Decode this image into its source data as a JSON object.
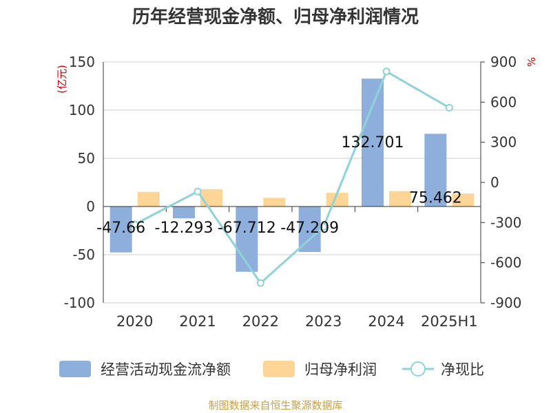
{
  "title": "历年经营现金净额、归母净利润情况",
  "footer": "制图数据来自恒生聚源数据库",
  "colors": {
    "ocf": "#8eaedb",
    "np": "#fdd596",
    "ratio": "#8fd3d8",
    "axis_text": "#333333",
    "unit_text": "#cc0000"
  },
  "chart_data": {
    "type": "bar",
    "categories": [
      "2020",
      "2021",
      "2022",
      "2023",
      "2024",
      "2025H1"
    ],
    "ylabel_left": "(亿元)",
    "ylabel_right": "%",
    "ylim_left": [
      -100,
      150
    ],
    "ylim_right": [
      -900,
      900
    ],
    "yticks_left": [
      "150",
      "100",
      "50",
      "0",
      "-50",
      "-100"
    ],
    "yticks_right": [
      "900",
      "600",
      "300",
      "0",
      "-300",
      "-600",
      "-900"
    ],
    "grid": true,
    "legend_position": "bottom",
    "series": [
      {
        "name": "经营活动现金流净额",
        "type": "bar",
        "axis": "left",
        "values": [
          -47.66,
          -12.293,
          -67.712,
          -47.209,
          132.701,
          75.462
        ],
        "labels": [
          "-47.66",
          "-12.293",
          "-67.712",
          "-47.209",
          "132.701",
          "75.462"
        ]
      },
      {
        "name": "归母净利润",
        "type": "bar",
        "axis": "left",
        "values": [
          15.2,
          18.0,
          9.0,
          14.2,
          16.0,
          13.5
        ]
      },
      {
        "name": "净现比",
        "type": "line",
        "axis": "right",
        "values": [
          -313,
          -68,
          -752,
          -332,
          829,
          558
        ]
      }
    ]
  }
}
